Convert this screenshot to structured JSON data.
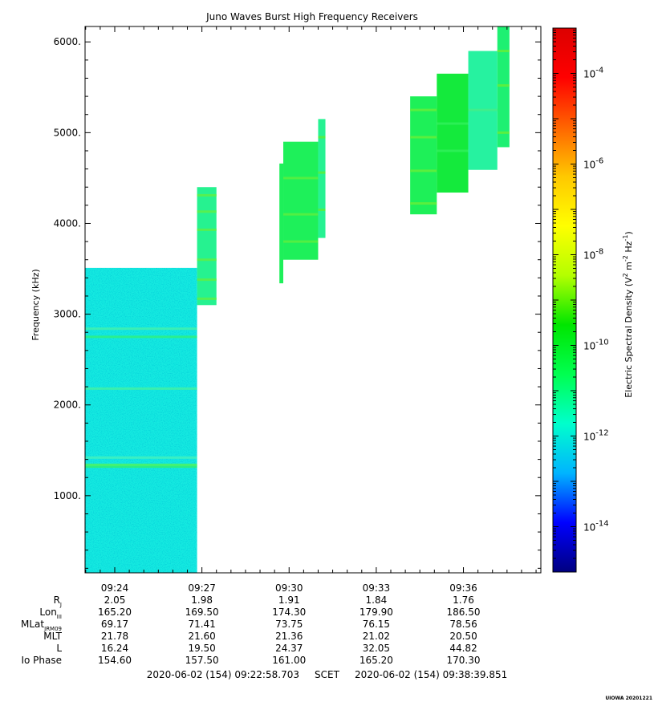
{
  "chart_data": {
    "type": "heatmap",
    "title": "Juno Waves Burst High Frequency Receivers",
    "ylabel": "Frequency (kHz)",
    "ylim": [
      150,
      6170
    ],
    "yticks": [
      1000,
      2000,
      3000,
      4000,
      5000,
      6000
    ],
    "ytick_labels": [
      "1000.",
      "2000.",
      "3000.",
      "4000.",
      "5000.",
      "6000."
    ],
    "xlim": [
      "09:22:58.703",
      "09:38:39.851"
    ],
    "xticks": [
      "09:24",
      "09:27",
      "09:30",
      "09:33",
      "09:36"
    ],
    "colorbar": {
      "label_parts": [
        "Electric Spectral Density (V",
        "2",
        " m",
        "-2",
        " Hz",
        "-1",
        ")"
      ],
      "scale": "log",
      "range": [
        1e-15,
        0.001
      ],
      "ticks": [
        {
          "base": "10",
          "exp": "-4",
          "value": 0.0001
        },
        {
          "base": "10",
          "exp": "-6",
          "value": 1e-06
        },
        {
          "base": "10",
          "exp": "-8",
          "value": 1e-08
        },
        {
          "base": "10",
          "exp": "-10",
          "value": 1e-10
        },
        {
          "base": "10",
          "exp": "-12",
          "value": 1e-12
        },
        {
          "base": "10",
          "exp": "-14",
          "value": 1e-14
        }
      ],
      "colors": [
        "#000080",
        "#0000ff",
        "#00b4ff",
        "#00ffcc",
        "#00ff50",
        "#00e600",
        "#b4ff00",
        "#ffff00",
        "#ffc800",
        "#ff6400",
        "#ff0000",
        "#dc0000"
      ]
    },
    "blocks": [
      {
        "t0": "09:22:58",
        "t1": "09:26:50",
        "f0": 150,
        "f1": 3510,
        "level": 1.2e-12,
        "color": "#19e8e0",
        "lines": [
          {
            "f": 1320,
            "color": "#2ef07a"
          },
          {
            "f": 1340,
            "color": "#4af26a"
          },
          {
            "f": 2180,
            "color": "#3ff0a8"
          },
          {
            "f": 2750,
            "color": "#2ef085"
          },
          {
            "f": 2840,
            "color": "#3ff0b0"
          },
          {
            "f": 1420,
            "color": "#3ff0c0"
          }
        ]
      },
      {
        "t0": "09:26:50",
        "t1": "09:27:30",
        "f0": 3100,
        "f1": 4400,
        "level": 6e-11,
        "color": "#26f290",
        "lines": [
          {
            "f": 3170,
            "color": "#5cf04a"
          },
          {
            "f": 3380,
            "color": "#5cf04a"
          },
          {
            "f": 3600,
            "color": "#5cf04a"
          },
          {
            "f": 3930,
            "color": "#5cf04a"
          },
          {
            "f": 4130,
            "color": "#5cf04a"
          },
          {
            "f": 4310,
            "color": "#5cf04a"
          }
        ]
      },
      {
        "t0": "09:29:40",
        "t1": "09:29:48",
        "f0": 3340,
        "f1": 4660,
        "level": 1e-10,
        "color": "#1ef05a",
        "lines": []
      },
      {
        "t0": "09:29:48",
        "t1": "09:31:00",
        "f0": 3600,
        "f1": 4900,
        "level": 1e-10,
        "color": "#1ef05a",
        "lines": [
          {
            "f": 3800,
            "color": "#58ee40"
          },
          {
            "f": 4100,
            "color": "#58ee40"
          },
          {
            "f": 4500,
            "color": "#58ee40"
          }
        ]
      },
      {
        "t0": "09:31:00",
        "t1": "09:31:15",
        "f0": 3840,
        "f1": 5150,
        "level": 5e-11,
        "color": "#26f292",
        "lines": [
          {
            "f": 4150,
            "color": "#58ee40"
          },
          {
            "f": 4560,
            "color": "#58ee40"
          },
          {
            "f": 4950,
            "color": "#58ee40"
          }
        ]
      },
      {
        "t0": "09:34:10",
        "t1": "09:35:05",
        "f0": 4100,
        "f1": 5400,
        "level": 1e-10,
        "color": "#1ef058",
        "lines": [
          {
            "f": 4220,
            "color": "#60ee3c"
          },
          {
            "f": 4580,
            "color": "#60ee3c"
          },
          {
            "f": 4950,
            "color": "#60ee3c"
          },
          {
            "f": 5250,
            "color": "#60ee3c"
          }
        ]
      },
      {
        "t0": "09:35:05",
        "t1": "09:36:10",
        "f0": 4340,
        "f1": 5650,
        "level": 2e-10,
        "color": "#14ea3c",
        "lines": [
          {
            "f": 4800,
            "color": "#2df058"
          },
          {
            "f": 5100,
            "color": "#2df058"
          }
        ]
      },
      {
        "t0": "09:36:10",
        "t1": "09:37:10",
        "f0": 4590,
        "f1": 5900,
        "level": 4e-11,
        "color": "#26f2a0",
        "lines": [
          {
            "f": 5250,
            "color": "#42ee8a"
          }
        ]
      },
      {
        "t0": "09:37:10",
        "t1": "09:37:35",
        "f0": 4840,
        "f1": 6170,
        "level": 1e-10,
        "color": "#1ef072",
        "lines": [
          {
            "f": 5000,
            "color": "#60ee3c"
          },
          {
            "f": 5520,
            "color": "#60ee3c"
          },
          {
            "f": 5900,
            "color": "#60ee3c"
          }
        ]
      }
    ]
  },
  "ephemeris": {
    "rows": [
      {
        "label": "R",
        "sub": "J",
        "values": [
          "2.05",
          "1.98",
          "1.91",
          "1.84",
          "1.76"
        ]
      },
      {
        "label": "Lon",
        "sub": "III",
        "values": [
          "165.20",
          "169.50",
          "174.30",
          "179.90",
          "186.50"
        ]
      },
      {
        "label": "MLat",
        "sub": "JRM09",
        "values": [
          "69.17",
          "71.41",
          "73.75",
          "76.15",
          "78.56"
        ]
      },
      {
        "label": "MLT",
        "sub": "",
        "values": [
          "21.78",
          "21.60",
          "21.36",
          "21.02",
          "20.50"
        ]
      },
      {
        "label": "L",
        "sub": "",
        "values": [
          "16.24",
          "19.50",
          "24.37",
          "32.05",
          "44.82"
        ]
      },
      {
        "label": "Io Phase",
        "sub": "",
        "values": [
          "154.60",
          "157.50",
          "161.00",
          "165.20",
          "170.30"
        ]
      }
    ]
  },
  "footer": {
    "range_text": "2020-06-02 (154) 09:22:58.703     SCET     2020-06-02 (154) 09:38:39.851"
  },
  "credit": "UIOWA 20201221"
}
